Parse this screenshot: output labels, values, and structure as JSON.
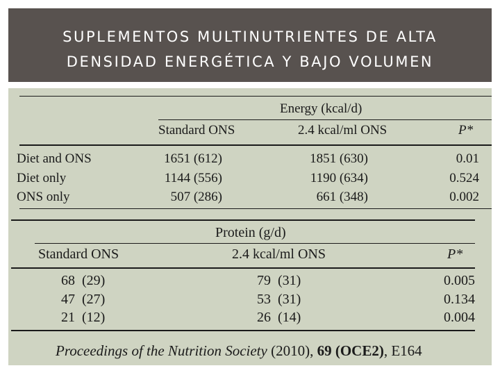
{
  "slide": {
    "title_line1": "SUPLEMENTOS MULTINUTRIENTES DE  ALTA",
    "title_line2": "DENSIDAD ENERGÉTICA Y BAJO VOLUMEN"
  },
  "energy_table": {
    "caption": "Energy (kcal/d)",
    "columns": [
      "Standard ONS",
      "2.4 kcal/ml ONS",
      "P*"
    ],
    "rows": [
      {
        "label": "Diet and ONS",
        "standard": "1651 (612)",
        "high": "1851 (630)",
        "p": "0.01"
      },
      {
        "label": "Diet only",
        "standard": "1144 (556)",
        "high": "1190 (634)",
        "p": "0.524"
      },
      {
        "label": "ONS only",
        "standard": "507 (286)",
        "high": "661 (348)",
        "p": "0.002"
      }
    ]
  },
  "protein_table": {
    "caption": "Protein (g/d)",
    "columns": [
      "Standard ONS",
      "2.4 kcal/ml ONS",
      "P*"
    ],
    "rows": [
      {
        "standard": "68  (29)",
        "high": "79  (31)",
        "p": "0.005"
      },
      {
        "standard": "47  (27)",
        "high": "53  (31)",
        "p": "0.134"
      },
      {
        "standard": "21  (12)",
        "high": "26  (14)",
        "p": "0.004"
      }
    ]
  },
  "citation": {
    "journal": "Proceedings of the Nutrition Society",
    "year": " (2010), ",
    "volume": "69 (OCE2)",
    "page": ", E164"
  }
}
